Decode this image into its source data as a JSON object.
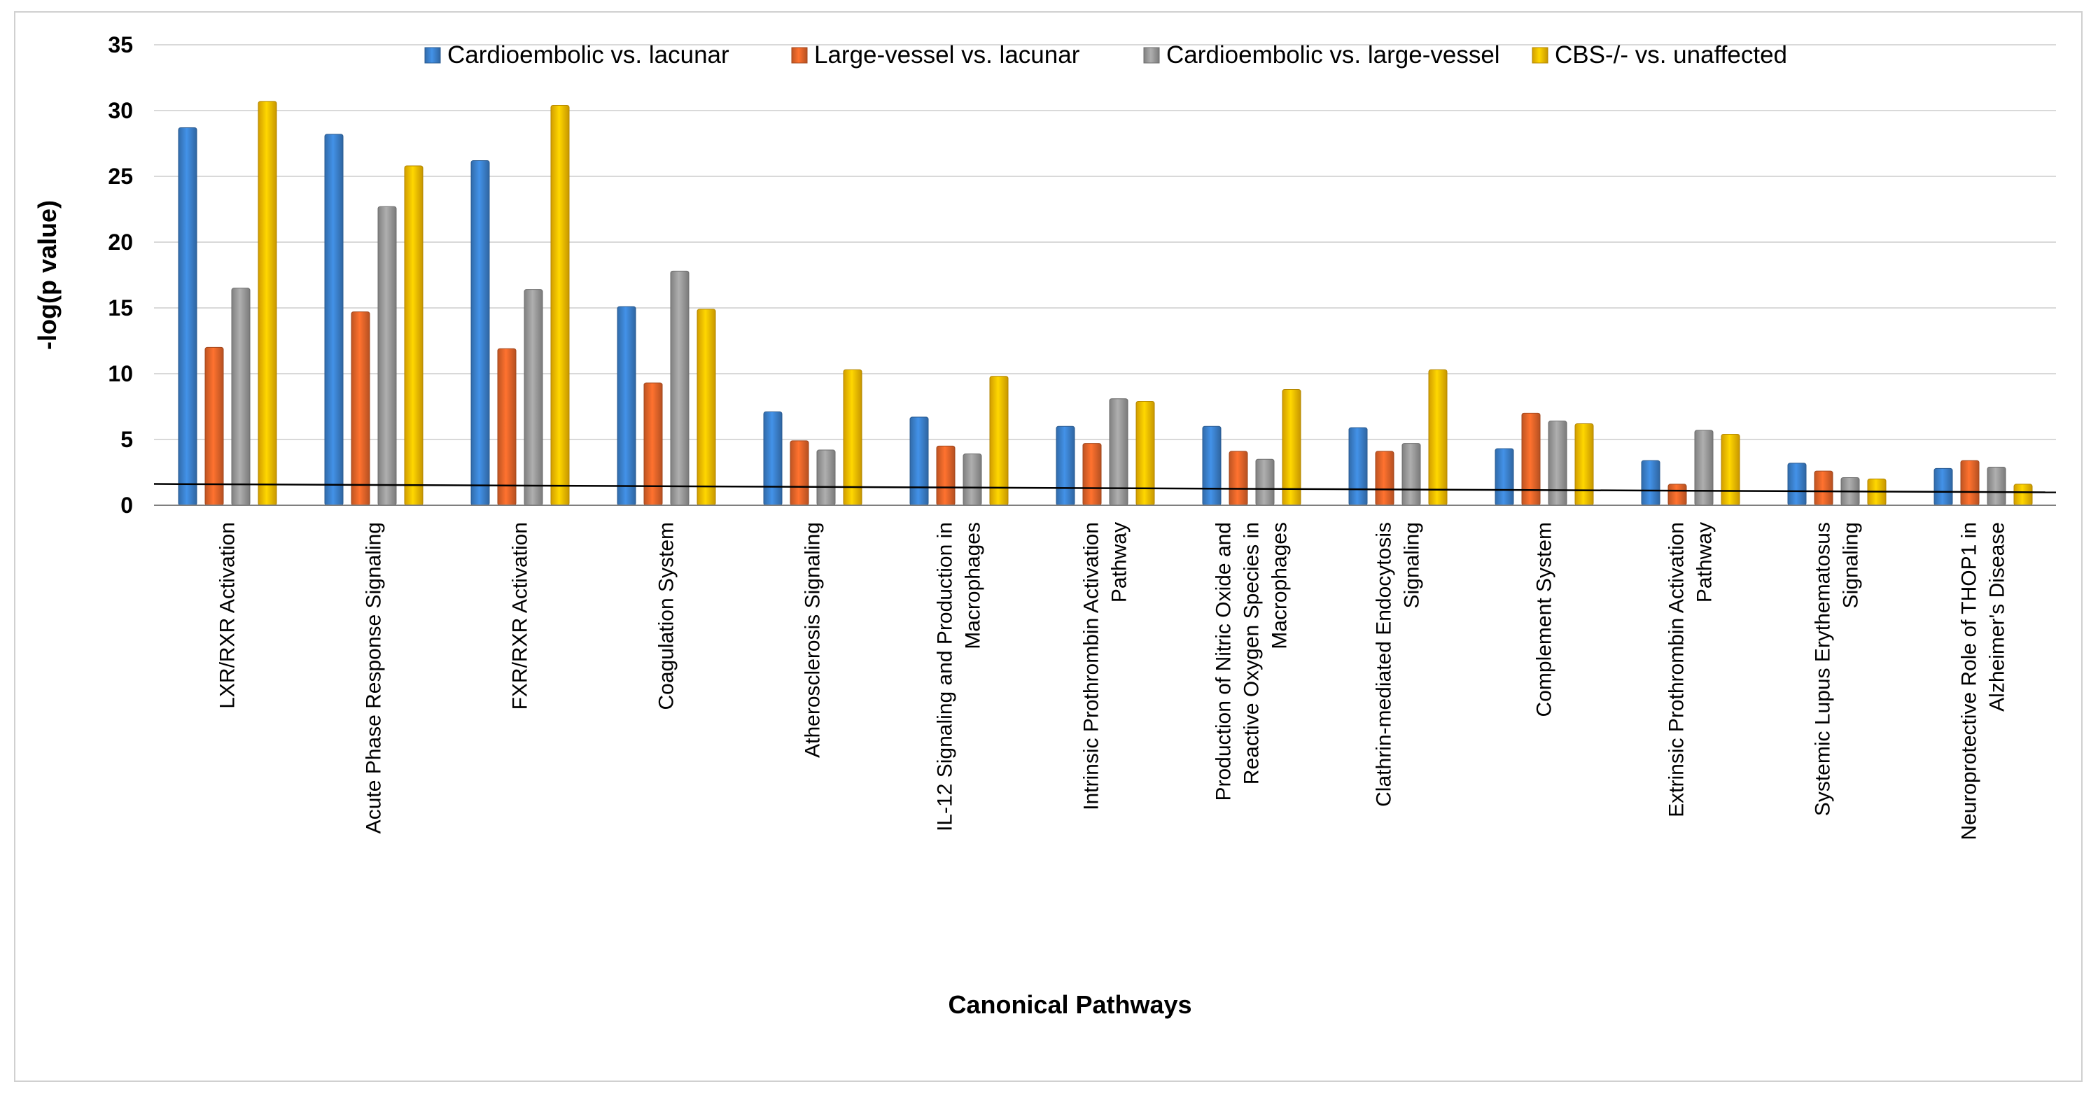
{
  "chart_data": {
    "type": "bar",
    "xlabel": "Canonical Pathways",
    "ylabel": "-log(p value)",
    "ylim": [
      0,
      35
    ],
    "yticks": [
      0,
      5,
      10,
      15,
      20,
      25,
      30,
      35
    ],
    "grid": true,
    "legend_position": "top",
    "threshold_line": 1.3,
    "categories": [
      [
        "LXR/RXR Activation"
      ],
      [
        "Acute Phase Response Signaling"
      ],
      [
        "FXR/RXR Activation"
      ],
      [
        "Coagulation System"
      ],
      [
        "Atherosclerosis Signaling"
      ],
      [
        "IL-12 Signaling and Production in",
        "Macrophages"
      ],
      [
        "Intrinsic Prothrombin Activation",
        "Pathway"
      ],
      [
        "Production of Nitric Oxide and",
        "Reactive Oxygen Species in",
        "Macrophages"
      ],
      [
        "Clathrin-mediated Endocytosis",
        "Signaling"
      ],
      [
        "Complement System"
      ],
      [
        "Extrinsic Prothrombin Activation",
        "Pathway"
      ],
      [
        "Systemic Lupus Erythematosus",
        "Signaling"
      ],
      [
        "Neuroprotective Role of THOP1 in",
        "Alzheimer's Disease"
      ]
    ],
    "series": [
      {
        "name": "Cardioembolic vs. lacunar",
        "color": "#3c82cf",
        "values": [
          28.7,
          28.2,
          26.2,
          15.1,
          7.1,
          6.7,
          6.0,
          6.0,
          5.9,
          4.3,
          3.4,
          3.2,
          2.8
        ]
      },
      {
        "name": "Large-vessel vs. lacunar",
        "color": "#e8662a",
        "values": [
          12.0,
          14.7,
          11.9,
          9.3,
          4.9,
          4.5,
          4.7,
          4.1,
          4.1,
          7.0,
          1.6,
          2.6,
          3.4
        ]
      },
      {
        "name": "Cardioembolic vs. large-vessel",
        "color": "#9c9c9c",
        "values": [
          16.5,
          22.7,
          16.4,
          17.8,
          4.2,
          3.9,
          8.1,
          3.5,
          4.7,
          6.4,
          5.7,
          2.1,
          2.9
        ]
      },
      {
        "name": "CBS-/- vs. unaffected",
        "color": "#ffc000",
        "values": [
          30.7,
          25.8,
          30.4,
          14.9,
          10.3,
          9.8,
          7.9,
          8.8,
          10.3,
          6.2,
          5.4,
          2.0,
          1.6
        ]
      }
    ]
  }
}
